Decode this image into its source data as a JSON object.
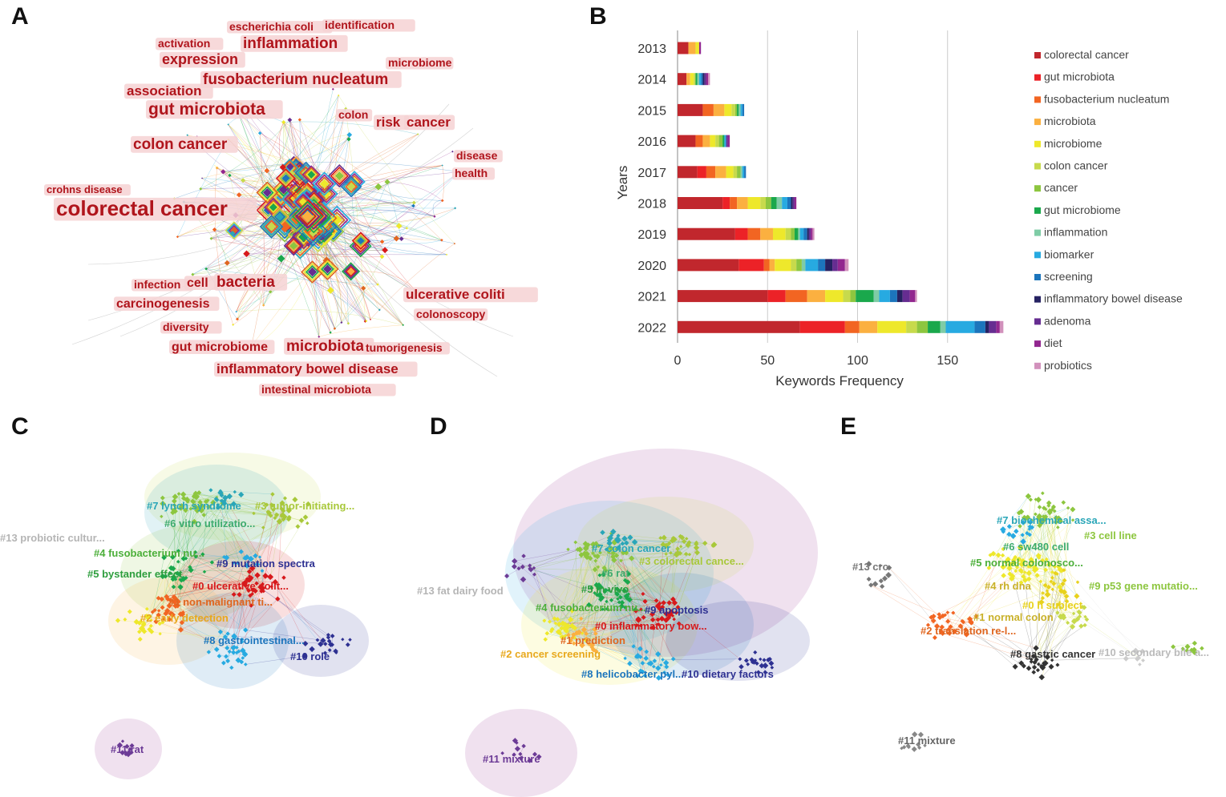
{
  "panels": {
    "a": "A",
    "b": "B",
    "c": "C",
    "d": "D",
    "e": "E"
  },
  "network_a": {
    "keywords": [
      {
        "text": "escherichia coli",
        "size": 14
      },
      {
        "text": "identification",
        "size": 14
      },
      {
        "text": "activation",
        "size": 14
      },
      {
        "text": "inflammation",
        "size": 19
      },
      {
        "text": "expression",
        "size": 18
      },
      {
        "text": "microbiome",
        "size": 14
      },
      {
        "text": "association",
        "size": 17
      },
      {
        "text": "fusobacterium nucleatum",
        "size": 19
      },
      {
        "text": "gut microbiota",
        "size": 21
      },
      {
        "text": "colon",
        "size": 14
      },
      {
        "text": "risk",
        "size": 17
      },
      {
        "text": "cancer",
        "size": 17
      },
      {
        "text": "colon cancer",
        "size": 19
      },
      {
        "text": "disease",
        "size": 14
      },
      {
        "text": "health",
        "size": 14
      },
      {
        "text": "crohns disease",
        "size": 13
      },
      {
        "text": "colorectal cancer",
        "size": 26
      },
      {
        "text": "infection",
        "size": 14
      },
      {
        "text": "cell",
        "size": 16
      },
      {
        "text": "bacteria",
        "size": 19
      },
      {
        "text": "ulcerative coliti",
        "size": 17
      },
      {
        "text": "carcinogenesis",
        "size": 16
      },
      {
        "text": "colonoscopy",
        "size": 14
      },
      {
        "text": "diversity",
        "size": 14
      },
      {
        "text": "gut microbiome",
        "size": 16
      },
      {
        "text": "microbiota",
        "size": 19
      },
      {
        "text": "tumorigenesis",
        "size": 14
      },
      {
        "text": "inflammatory bowel disease",
        "size": 17
      },
      {
        "text": "intestinal microbiota",
        "size": 14
      }
    ]
  },
  "chart_data": {
    "type": "bar",
    "stacked": true,
    "orientation": "horizontal",
    "ylabel": "Years",
    "xlabel": "Keywords Frequency",
    "xlim": [
      0,
      180
    ],
    "xticks": [
      0,
      50,
      100,
      150
    ],
    "categories": [
      "2013",
      "2014",
      "2015",
      "2016",
      "2017",
      "2018",
      "2019",
      "2020",
      "2021",
      "2022"
    ],
    "series": [
      {
        "name": "colorectal cancer",
        "color": "#c1272d",
        "values": [
          6,
          5,
          14,
          10,
          11,
          25,
          32,
          34,
          50,
          68
        ]
      },
      {
        "name": "gut microbiota",
        "color": "#ec2227",
        "values": [
          0,
          0,
          0,
          0,
          5,
          4,
          7,
          14,
          10,
          25
        ]
      },
      {
        "name": "fusobacterium nucleatum",
        "color": "#f26522",
        "values": [
          0,
          0,
          6,
          4,
          5,
          4,
          7,
          3,
          12,
          8
        ]
      },
      {
        "name": "microbiota",
        "color": "#fbb040",
        "values": [
          4,
          2,
          6,
          4,
          6,
          6,
          7,
          3,
          10,
          10
        ]
      },
      {
        "name": "microbiome",
        "color": "#eee82b",
        "values": [
          2,
          2,
          4,
          3,
          4,
          7,
          7,
          9,
          10,
          16
        ]
      },
      {
        "name": "colon cancer",
        "color": "#c7da4c",
        "values": [
          0,
          1,
          2,
          2,
          2,
          3,
          3,
          3,
          4,
          6
        ]
      },
      {
        "name": "cancer",
        "color": "#8dc63f",
        "values": [
          0,
          0,
          1,
          2,
          2,
          3,
          2,
          3,
          3,
          6
        ]
      },
      {
        "name": "gut microbiome",
        "color": "#1aa84c",
        "values": [
          0,
          1,
          1,
          1,
          0,
          3,
          2,
          0,
          10,
          7
        ]
      },
      {
        "name": "inflammation",
        "color": "#7fcca6",
        "values": [
          0,
          1,
          1,
          0,
          1,
          3,
          1,
          2,
          3,
          3
        ]
      },
      {
        "name": "biomarker",
        "color": "#27aae1",
        "values": [
          0,
          1,
          1,
          1,
          1,
          3,
          2,
          7,
          6,
          16
        ]
      },
      {
        "name": "screening",
        "color": "#1c75bc",
        "values": [
          0,
          1,
          1,
          0,
          1,
          2,
          2,
          4,
          4,
          6
        ]
      },
      {
        "name": "inflammatory bowel disease",
        "color": "#262262",
        "values": [
          0,
          1,
          0,
          0,
          0,
          1,
          1,
          4,
          3,
          2
        ]
      },
      {
        "name": "adenoma",
        "color": "#662d91",
        "values": [
          0,
          1,
          0,
          1,
          0,
          1,
          1,
          3,
          4,
          4
        ]
      },
      {
        "name": "diet",
        "color": "#92278f",
        "values": [
          1,
          1,
          0,
          1,
          0,
          1,
          1,
          4,
          3,
          2
        ]
      },
      {
        "name": "probiotics",
        "color": "#d291bc",
        "values": [
          0,
          1,
          0,
          0,
          0,
          0,
          1,
          2,
          1,
          2
        ]
      }
    ]
  },
  "cluster_c": [
    {
      "text": "#13 probiotic cultur...",
      "color": "#b5b5b5"
    },
    {
      "text": "#7 lynch syndrome",
      "color": "#2aa6b8"
    },
    {
      "text": "#3 tumor-initiating...",
      "color": "#a8c83a"
    },
    {
      "text": "#6 vitro utilizatio...",
      "color": "#3dab6e"
    },
    {
      "text": "#4 fusobacterium nu...",
      "color": "#4caf3a"
    },
    {
      "text": "#9 mutation spectra",
      "color": "#2e3192"
    },
    {
      "text": "#5 bystander effect",
      "color": "#2e9e3e"
    },
    {
      "text": "#0 ulcerative colit...",
      "color": "#d7191c"
    },
    {
      "text": "#1 non-malignant ti...",
      "color": "#e0661f"
    },
    {
      "text": "#2 early detection",
      "color": "#e8a81c"
    },
    {
      "text": "#8 gastrointestinal...",
      "color": "#1c75bc"
    },
    {
      "text": "#10 role",
      "color": "#2e3192"
    },
    {
      "text": "#11 rat",
      "color": "#6c3b96"
    }
  ],
  "cluster_d": [
    {
      "text": "#7 colon cancer",
      "color": "#2aa6b8"
    },
    {
      "text": "#3 colorectal cance...",
      "color": "#a8c83a"
    },
    {
      "text": "#6 rat",
      "color": "#3dab6e"
    },
    {
      "text": "#13 fat dairy food",
      "color": "#b5b5b5"
    },
    {
      "text": "#5 in vivo",
      "color": "#2e9e3e"
    },
    {
      "text": "#4 fusobacterium nu...",
      "color": "#4caf3a"
    },
    {
      "text": "#9 apoptosis",
      "color": "#2e3192"
    },
    {
      "text": "#0 inflammatory bow...",
      "color": "#d7191c"
    },
    {
      "text": "#1 prediction",
      "color": "#e0661f"
    },
    {
      "text": "#2 cancer screening",
      "color": "#e8a81c"
    },
    {
      "text": "#8 helicobacter pyl...",
      "color": "#1c75bc"
    },
    {
      "text": "#10 dietary factors",
      "color": "#2e3192"
    },
    {
      "text": "#11 mixture",
      "color": "#6c3b96"
    }
  ],
  "cluster_e": [
    {
      "text": "#7 biochemical assa...",
      "color": "#2aa6b8"
    },
    {
      "text": "#3 cell line",
      "color": "#8dc63f"
    },
    {
      "text": "#6 sw480 cell",
      "color": "#3dab6e"
    },
    {
      "text": "#13 crc",
      "color": "#777777"
    },
    {
      "text": "#5 normal colonosco...",
      "color": "#4caf3a"
    },
    {
      "text": "#4 rh dna",
      "color": "#c9b12a"
    },
    {
      "text": "#9 p53 gene mutatio...",
      "color": "#8dc63f"
    },
    {
      "text": "#0 h subject",
      "color": "#e8d21c"
    },
    {
      "text": "#1 normal colon",
      "color": "#c9b12a"
    },
    {
      "text": "#2 translation re-l...",
      "color": "#e0661f"
    },
    {
      "text": "#8 gastric cancer",
      "color": "#333333"
    },
    {
      "text": "#10 secondary bile a...",
      "color": "#bbbbbb"
    },
    {
      "text": "#11 mixture",
      "color": "#666666"
    }
  ]
}
